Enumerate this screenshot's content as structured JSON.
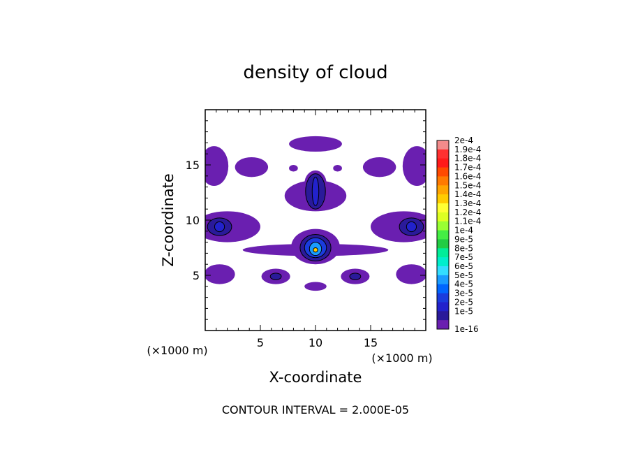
{
  "chart_data": {
    "type": "heatmap",
    "title": "density of cloud",
    "xlabel": "X-coordinate",
    "ylabel": "Z-coordinate",
    "x_unit": "(×1000 m)",
    "y_unit": "(×1000 m)",
    "xlim": [
      0,
      20
    ],
    "ylim": [
      0,
      20
    ],
    "x_ticks": [
      "5",
      "10",
      "15"
    ],
    "y_ticks": [
      "5",
      "10",
      "15"
    ],
    "x_tick_values": [
      5,
      10,
      15
    ],
    "y_tick_values": [
      5,
      10,
      15
    ],
    "footer": "CONTOUR INTERVAL = 2.000E-05",
    "colorbar": {
      "labels": [
        "2e-4",
        "1.9e-4",
        "1.8e-4",
        "1.7e-4",
        "1.6e-4",
        "1.5e-4",
        "1.4e-4",
        "1.3e-4",
        "1.2e-4",
        "1.1e-4",
        "1e-4",
        "9e-5",
        "8e-5",
        "7e-5",
        "6e-5",
        "5e-5",
        "4e-5",
        "3e-5",
        "2e-5",
        "1e-5",
        "1e-16"
      ],
      "colors": [
        "#f28b8b",
        "#ff3030",
        "#ff1a1a",
        "#ff4a00",
        "#ff7a00",
        "#ffa500",
        "#ffcc00",
        "#ffff33",
        "#ddff22",
        "#99ff33",
        "#44ee44",
        "#22cc44",
        "#00ee99",
        "#00eecc",
        "#33ddff",
        "#1a9cff",
        "#0066ff",
        "#1a3cdd",
        "#2222cc",
        "#2a1a9a",
        "#6a1fb0"
      ]
    },
    "blobs": [
      {
        "x": 10.0,
        "z": 16.9,
        "rx": 2.4,
        "rz": 0.7,
        "level": 0
      },
      {
        "x": 0.8,
        "z": 14.9,
        "rx": 1.3,
        "rz": 1.8,
        "level": 0
      },
      {
        "x": 19.2,
        "z": 14.9,
        "rx": 1.3,
        "rz": 1.8,
        "level": 0
      },
      {
        "x": 4.2,
        "z": 14.8,
        "rx": 1.5,
        "rz": 0.9,
        "level": 0
      },
      {
        "x": 15.8,
        "z": 14.8,
        "rx": 1.5,
        "rz": 0.9,
        "level": 0
      },
      {
        "x": 8.0,
        "z": 14.7,
        "rx": 0.4,
        "rz": 0.3,
        "level": 0
      },
      {
        "x": 12.0,
        "z": 14.7,
        "rx": 0.4,
        "rz": 0.3,
        "level": 0
      },
      {
        "x": 10.0,
        "z": 12.2,
        "rx": 2.8,
        "rz": 1.4,
        "level": 0
      },
      {
        "x": 10.0,
        "z": 13.3,
        "rx": 1.0,
        "rz": 1.2,
        "level": 0
      },
      {
        "x": 10.0,
        "z": 12.6,
        "rx": 0.9,
        "rz": 1.6,
        "level": 1
      },
      {
        "x": 10.0,
        "z": 12.6,
        "rx": 0.3,
        "rz": 1.3,
        "level": 2
      },
      {
        "x": 2.0,
        "z": 9.4,
        "rx": 3.0,
        "rz": 1.4,
        "level": 0
      },
      {
        "x": 18.0,
        "z": 9.4,
        "rx": 3.0,
        "rz": 1.4,
        "level": 0
      },
      {
        "x": 1.3,
        "z": 9.4,
        "rx": 1.1,
        "rz": 0.8,
        "level": 1
      },
      {
        "x": 18.7,
        "z": 9.4,
        "rx": 1.1,
        "rz": 0.8,
        "level": 1
      },
      {
        "x": 1.3,
        "z": 9.4,
        "rx": 0.45,
        "rz": 0.45,
        "level": 2
      },
      {
        "x": 18.7,
        "z": 9.4,
        "rx": 0.45,
        "rz": 0.45,
        "level": 2
      },
      {
        "x": 10.0,
        "z": 7.3,
        "rx": 6.6,
        "rz": 0.55,
        "level": 0
      },
      {
        "x": 10.0,
        "z": 7.6,
        "rx": 2.2,
        "rz": 1.6,
        "level": 0
      },
      {
        "x": 10.0,
        "z": 7.5,
        "rx": 1.4,
        "rz": 1.2,
        "level": 1
      },
      {
        "x": 10.0,
        "z": 7.5,
        "rx": 1.0,
        "rz": 0.9,
        "level": 3
      },
      {
        "x": 10.0,
        "z": 7.4,
        "rx": 0.55,
        "rz": 0.6,
        "level": 5
      },
      {
        "x": 10.0,
        "z": 7.3,
        "rx": 0.2,
        "rz": 0.2,
        "level": 14
      },
      {
        "x": 1.3,
        "z": 5.1,
        "rx": 1.4,
        "rz": 0.9,
        "level": 0
      },
      {
        "x": 18.7,
        "z": 5.1,
        "rx": 1.4,
        "rz": 0.9,
        "level": 0
      },
      {
        "x": 6.4,
        "z": 4.9,
        "rx": 1.3,
        "rz": 0.7,
        "level": 0
      },
      {
        "x": 13.6,
        "z": 4.9,
        "rx": 1.3,
        "rz": 0.7,
        "level": 0
      },
      {
        "x": 6.4,
        "z": 4.9,
        "rx": 0.5,
        "rz": 0.3,
        "level": 1
      },
      {
        "x": 13.6,
        "z": 4.9,
        "rx": 0.5,
        "rz": 0.3,
        "level": 1
      },
      {
        "x": 10.0,
        "z": 4.0,
        "rx": 1.0,
        "rz": 0.4,
        "level": 0
      }
    ]
  }
}
